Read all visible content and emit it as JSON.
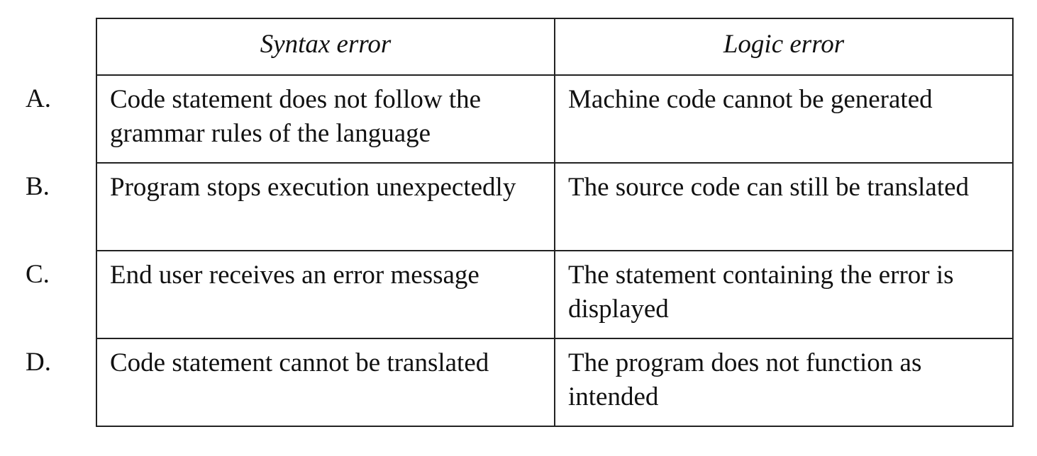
{
  "headers": {
    "syntax": "Syntax error",
    "logic": "Logic error"
  },
  "options": [
    {
      "letter": "A.",
      "syntax": "Code statement does not follow the grammar rules of the language",
      "logic": "Machine code cannot be generated"
    },
    {
      "letter": "B.",
      "syntax": "Program stops execution unexpectedly",
      "logic": "The source code can still be translated"
    },
    {
      "letter": "C.",
      "syntax": "End user receives an error message",
      "logic": "The statement containing the error is displayed"
    },
    {
      "letter": "D.",
      "syntax": "Code statement cannot be translated",
      "logic": "The program does not function as intended"
    }
  ]
}
